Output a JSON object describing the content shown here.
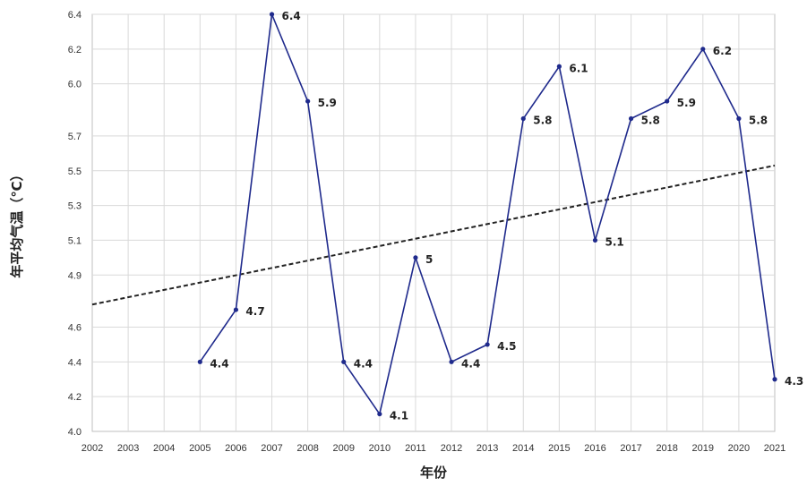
{
  "chart_data": {
    "type": "line",
    "xlabel": "年份",
    "ylabel": "年平均气温（℃）",
    "categories": [
      "2002",
      "2003",
      "2004",
      "2005",
      "2006",
      "2007",
      "2008",
      "2009",
      "2010",
      "2011",
      "2012",
      "2013",
      "2014",
      "2015",
      "2016",
      "2017",
      "2018",
      "2019",
      "2020",
      "2021"
    ],
    "yticks": [
      "4.0",
      "4.2",
      "4.4",
      "4.6",
      "4.9",
      "5.1",
      "5.3",
      "5.5",
      "5.7",
      "6.0",
      "6.2",
      "6.4"
    ],
    "ylim": [
      4.0,
      6.4
    ],
    "grid": true,
    "series": [
      {
        "color": "#1f2a8c",
        "values": [
          null,
          null,
          null,
          4.4,
          4.7,
          6.4,
          5.9,
          4.4,
          4.1,
          5,
          4.4,
          4.5,
          5.8,
          6.1,
          5.1,
          5.8,
          5.9,
          6.2,
          5.8,
          4.3
        ],
        "labels": [
          null,
          null,
          null,
          "4.4",
          "4.7",
          "6.4",
          "5.9",
          "4.4",
          "4.1",
          "5",
          "4.4",
          "4.5",
          "5.8",
          "6.1",
          "5.1",
          "5.8",
          "5.9",
          "6.2",
          "5.8",
          "4.3"
        ]
      }
    ],
    "trendline": {
      "style": "dashed",
      "color": "#222222",
      "start": {
        "x": "2002",
        "y": 4.73
      },
      "end": {
        "x": "2021",
        "y": 5.53
      }
    }
  }
}
